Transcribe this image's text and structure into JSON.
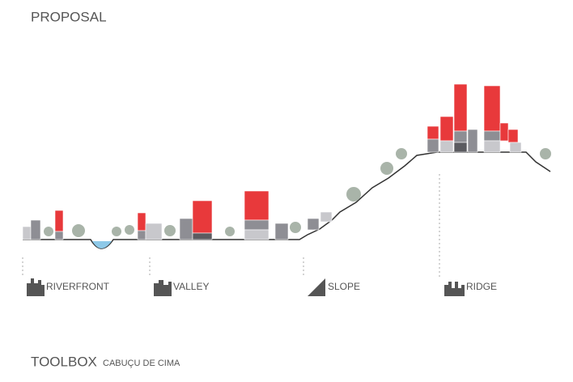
{
  "header": {
    "title": "PROPOSAL"
  },
  "sections": [
    {
      "label": "RIVERFRONT"
    },
    {
      "label": "VALLEY"
    },
    {
      "label": "SLOPE"
    },
    {
      "label": "RIDGE"
    }
  ],
  "footer": {
    "title": "TOOLBOX",
    "subtitle": "CABUÇU DE CIMA"
  }
}
